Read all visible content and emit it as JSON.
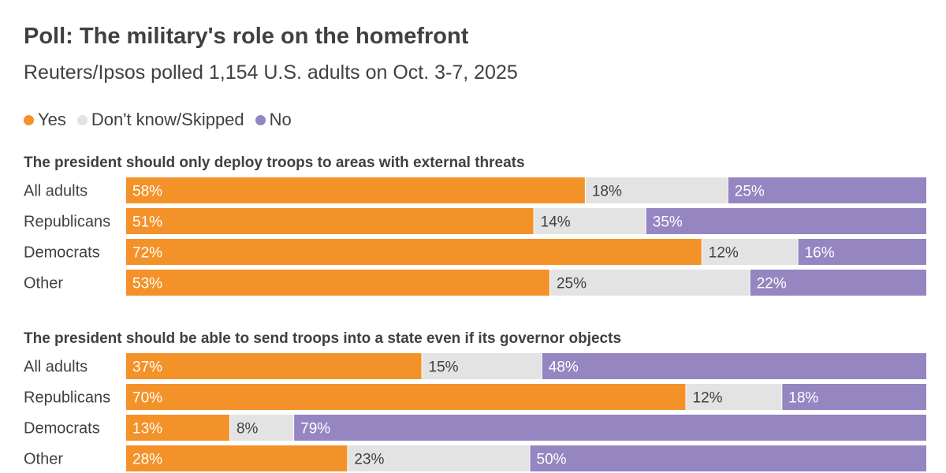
{
  "title": "Poll: The military's role on the homefront",
  "subtitle": "Reuters/Ipsos polled 1,154 U.S. adults on Oct. 3-7, 2025",
  "legend": [
    {
      "label": "Yes",
      "color": "#f39228"
    },
    {
      "label": "Don't know/Skipped",
      "color": "#e3e3e3"
    },
    {
      "label": "No",
      "color": "#9585c1"
    }
  ],
  "chart_data": [
    {
      "type": "bar",
      "orientation": "horizontal",
      "stacked": true,
      "title": "The president should only deploy troops to areas with external threats",
      "categories": [
        "All adults",
        "Republicans",
        "Democrats",
        "Other"
      ],
      "series": [
        {
          "name": "Yes",
          "values": [
            58,
            51,
            72,
            53
          ]
        },
        {
          "name": "Don't know/Skipped",
          "values": [
            18,
            14,
            12,
            25
          ]
        },
        {
          "name": "No",
          "values": [
            25,
            35,
            16,
            22
          ]
        }
      ],
      "labels": [
        [
          "58%",
          "18%",
          "25%"
        ],
        [
          "51%",
          "14%",
          "35%"
        ],
        [
          "72%",
          "12%",
          "16%"
        ],
        [
          "53%",
          "25%",
          "22%"
        ]
      ],
      "xlim": [
        0,
        100
      ]
    },
    {
      "type": "bar",
      "orientation": "horizontal",
      "stacked": true,
      "title": "The president should be able to send troops into a state even if its governor objects",
      "categories": [
        "All adults",
        "Republicans",
        "Democrats",
        "Other"
      ],
      "series": [
        {
          "name": "Yes",
          "values": [
            37,
            70,
            13,
            28
          ]
        },
        {
          "name": "Don't know/Skipped",
          "values": [
            15,
            12,
            8,
            23
          ]
        },
        {
          "name": "No",
          "values": [
            48,
            18,
            79,
            50
          ]
        }
      ],
      "labels": [
        [
          "37%",
          "15%",
          "48%"
        ],
        [
          "70%",
          "12%",
          "18%"
        ],
        [
          "13%",
          "8%",
          "79%"
        ],
        [
          "28%",
          "23%",
          "50%"
        ]
      ],
      "xlim": [
        0,
        100
      ]
    }
  ]
}
